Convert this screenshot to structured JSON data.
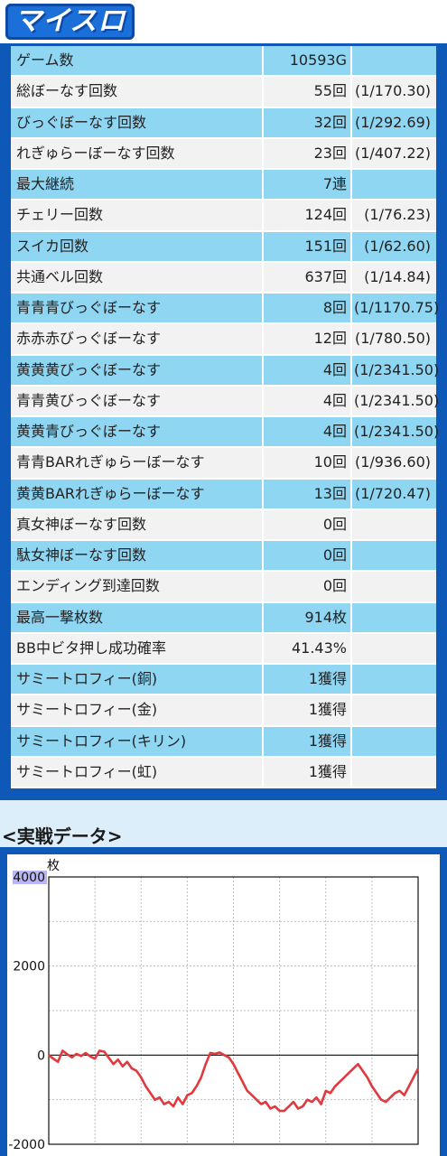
{
  "logo": {
    "text": "マイスロ"
  },
  "stats": [
    {
      "label": "ゲーム数",
      "value": "10593G",
      "ratio": "",
      "color": "blue"
    },
    {
      "label": "総ぼーなす回数",
      "value": "55回",
      "ratio": "(1/170.30)",
      "color": "gray"
    },
    {
      "label": "びっぐぼーなす回数",
      "value": "32回",
      "ratio": "(1/292.69)",
      "color": "blue"
    },
    {
      "label": "れぎゅらーぼーなす回数",
      "value": "23回",
      "ratio": "(1/407.22)",
      "color": "gray"
    },
    {
      "label": "最大継続",
      "value": "7連",
      "ratio": "",
      "color": "blue"
    },
    {
      "label": "チェリー回数",
      "value": "124回",
      "ratio": "(1/76.23)",
      "color": "gray"
    },
    {
      "label": "スイカ回数",
      "value": "151回",
      "ratio": "(1/62.60)",
      "color": "blue"
    },
    {
      "label": "共通ベル回数",
      "value": "637回",
      "ratio": "(1/14.84)",
      "color": "gray"
    },
    {
      "label": "青青青びっぐぼーなす",
      "value": "8回",
      "ratio": "(1/1170.75)",
      "color": "blue"
    },
    {
      "label": "赤赤赤びっぐぼーなす",
      "value": "12回",
      "ratio": "(1/780.50)",
      "color": "gray"
    },
    {
      "label": "黄黄黄びっぐぼーなす",
      "value": "4回",
      "ratio": "(1/2341.50)",
      "color": "blue"
    },
    {
      "label": "青青黄びっぐぼーなす",
      "value": "4回",
      "ratio": "(1/2341.50)",
      "color": "gray"
    },
    {
      "label": "黄黄青びっぐぼーなす",
      "value": "4回",
      "ratio": "(1/2341.50)",
      "color": "blue"
    },
    {
      "label": "青青BARれぎゅらーぼーなす",
      "value": "10回",
      "ratio": "(1/936.60)",
      "color": "gray"
    },
    {
      "label": "黄黄BARれぎゅらーぼーなす",
      "value": "13回",
      "ratio": "(1/720.47)",
      "color": "blue"
    },
    {
      "label": "真女神ぼーなす回数",
      "value": "0回",
      "ratio": "",
      "color": "gray"
    },
    {
      "label": "駄女神ぼーなす回数",
      "value": "0回",
      "ratio": "",
      "color": "blue"
    },
    {
      "label": "エンディング到達回数",
      "value": "0回",
      "ratio": "",
      "color": "gray"
    },
    {
      "label": "最高一撃枚数",
      "value": "914枚",
      "ratio": "",
      "color": "blue"
    },
    {
      "label": "BB中ビタ押し成功確率",
      "value": "41.43%",
      "ratio": "",
      "color": "gray"
    },
    {
      "label": "サミートロフィー(銅)",
      "value": "1獲得",
      "ratio": "",
      "color": "blue"
    },
    {
      "label": "サミートロフィー(金)",
      "value": "1獲得",
      "ratio": "",
      "color": "gray"
    },
    {
      "label": "サミートロフィー(キリン)",
      "value": "1獲得",
      "ratio": "",
      "color": "blue"
    },
    {
      "label": "サミートロフィー(虹)",
      "value": "1獲得",
      "ratio": "",
      "color": "gray"
    }
  ],
  "section_title": "<実戦データ>",
  "chart_data": {
    "type": "line",
    "ylabel": "枚",
    "ylim": [
      -2000,
      4000
    ],
    "yticks": [
      "4000",
      "2000",
      "0",
      "-2000"
    ],
    "grid": true,
    "series_color": "#e0393e",
    "x": [
      0,
      1,
      2,
      3,
      4,
      5,
      6,
      7,
      8,
      9,
      10,
      11,
      12,
      13,
      14,
      15,
      16,
      17,
      18,
      19,
      20,
      21,
      22,
      23,
      24,
      25,
      26,
      27,
      28,
      29,
      30,
      31,
      32,
      33,
      34,
      35,
      36,
      37,
      38,
      39,
      40,
      41,
      42,
      43,
      44,
      45,
      46,
      47,
      48,
      49,
      50,
      51,
      52,
      53,
      54,
      55,
      56,
      57,
      58,
      59,
      60,
      61,
      62,
      63,
      64,
      65,
      66,
      67,
      68,
      69,
      70,
      71,
      72,
      73,
      74,
      75,
      76,
      77,
      78,
      79,
      80
    ],
    "y": [
      0,
      -80,
      -150,
      100,
      20,
      -50,
      30,
      -20,
      50,
      -30,
      -80,
      100,
      80,
      -60,
      -200,
      -100,
      -250,
      -150,
      -300,
      -350,
      -500,
      -700,
      -850,
      -1000,
      -950,
      -1100,
      -1050,
      -1150,
      -950,
      -1100,
      -900,
      -850,
      -700,
      -500,
      -200,
      50,
      30,
      60,
      0,
      -50,
      -200,
      -400,
      -600,
      -800,
      -900,
      -1000,
      -1100,
      -1050,
      -1200,
      -1150,
      -1250,
      -1250,
      -1150,
      -1050,
      -1200,
      -1150,
      -1000,
      -1050,
      -950,
      -1100,
      -800,
      -850,
      -700,
      -600,
      -500,
      -400,
      -300,
      -200,
      -350,
      -500,
      -700,
      -850,
      -1000,
      -1050,
      -950,
      -850,
      -800,
      -900,
      -700,
      -500,
      -300
    ]
  }
}
